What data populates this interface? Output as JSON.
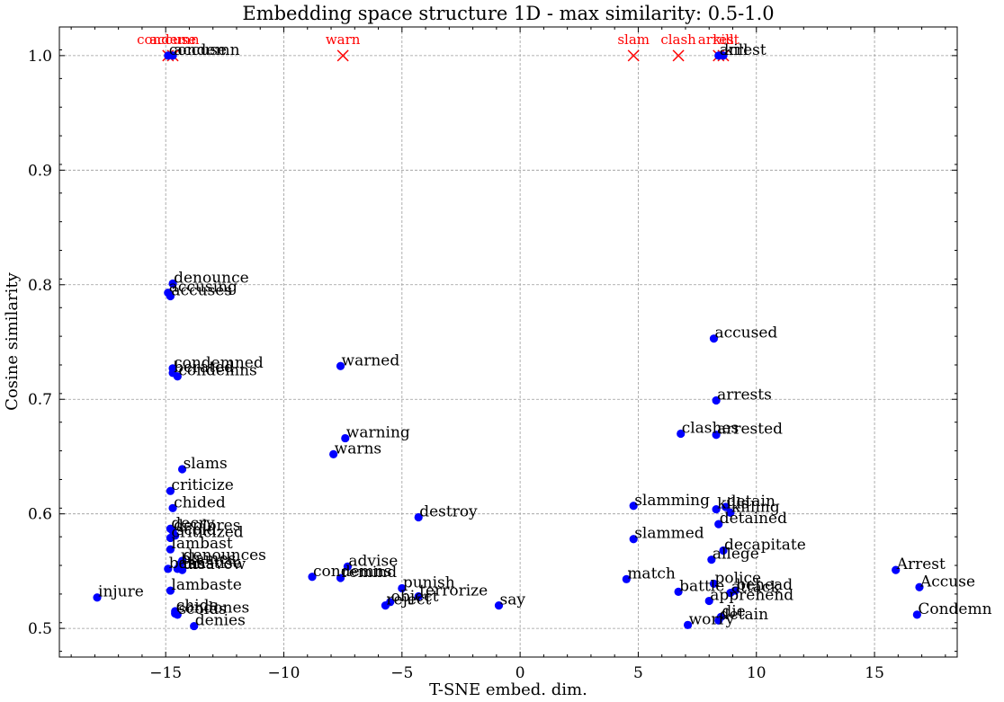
{
  "chart_data": {
    "type": "scatter",
    "title": "Embedding space structure 1D - max similarity: 0.5-1.0",
    "xlabel": "T-SNE embed. dim.",
    "ylabel": "Cosine similarity",
    "xlim": [
      -19.5,
      18.5
    ],
    "ylim": [
      0.475,
      1.025
    ],
    "xticks": [
      -15,
      -10,
      -5,
      0,
      5,
      10,
      15
    ],
    "xtick_labels": [
      "−15",
      "−10",
      "−5",
      "0",
      "5",
      "10",
      "15"
    ],
    "yticks": [
      0.5,
      0.6,
      0.7,
      0.8,
      0.9,
      1.0
    ],
    "ytick_labels": [
      "0.5",
      "0.6",
      "0.7",
      "0.8",
      "0.9",
      "1.0"
    ],
    "grid": true,
    "colors": {
      "points": "#0000ff",
      "reference": "#ff0000"
    },
    "reference_words": [
      {
        "label": "condemn",
        "x": -14.9,
        "y": 1.0
      },
      {
        "label": "accuse",
        "x": -14.7,
        "y": 1.0
      },
      {
        "label": "warn",
        "x": -7.5,
        "y": 1.0
      },
      {
        "label": "slam",
        "x": 4.8,
        "y": 1.0
      },
      {
        "label": "clash",
        "x": 6.7,
        "y": 1.0
      },
      {
        "label": "arrest",
        "x": 8.4,
        "y": 1.0
      },
      {
        "label": "kill",
        "x": 8.6,
        "y": 1.0
      }
    ],
    "points": [
      {
        "label": "accuse",
        "x": -14.7,
        "y": 1.0
      },
      {
        "label": "condemn",
        "x": -14.9,
        "y": 1.0
      },
      {
        "label": "arrest",
        "x": 8.4,
        "y": 1.0
      },
      {
        "label": "kill",
        "x": 8.6,
        "y": 1.0
      },
      {
        "label": "denounce",
        "x": -14.7,
        "y": 0.801
      },
      {
        "label": "accusing",
        "x": -14.9,
        "y": 0.793
      },
      {
        "label": "accuses",
        "x": -14.8,
        "y": 0.79
      },
      {
        "label": "accused",
        "x": 8.2,
        "y": 0.753
      },
      {
        "label": "condemned",
        "x": -14.7,
        "y": 0.727
      },
      {
        "label": "warned",
        "x": -7.6,
        "y": 0.729
      },
      {
        "label": "berated",
        "x": -14.7,
        "y": 0.723
      },
      {
        "label": "condemns",
        "x": -14.5,
        "y": 0.72
      },
      {
        "label": "arrests",
        "x": 8.3,
        "y": 0.699
      },
      {
        "label": "clashes",
        "x": 6.8,
        "y": 0.67
      },
      {
        "label": "arrested",
        "x": 8.3,
        "y": 0.669
      },
      {
        "label": "warning",
        "x": -7.4,
        "y": 0.666
      },
      {
        "label": "warns",
        "x": -7.9,
        "y": 0.652
      },
      {
        "label": "slams",
        "x": -14.3,
        "y": 0.639
      },
      {
        "label": "criticize",
        "x": -14.8,
        "y": 0.62
      },
      {
        "label": "chided",
        "x": -14.7,
        "y": 0.605
      },
      {
        "label": "slamming",
        "x": 4.8,
        "y": 0.607
      },
      {
        "label": "kills",
        "x": 8.3,
        "y": 0.604
      },
      {
        "label": "killing",
        "x": 8.9,
        "y": 0.601
      },
      {
        "label": "detain",
        "x": 8.7,
        "y": 0.606
      },
      {
        "label": "destroy",
        "x": -4.3,
        "y": 0.597
      },
      {
        "label": "detained",
        "x": 8.4,
        "y": 0.591
      },
      {
        "label": "decry",
        "x": -14.8,
        "y": 0.587
      },
      {
        "label": "deplores",
        "x": -14.7,
        "y": 0.585
      },
      {
        "label": "scold",
        "x": -14.6,
        "y": 0.581
      },
      {
        "label": "criticized",
        "x": -14.8,
        "y": 0.579
      },
      {
        "label": "slammed",
        "x": 4.8,
        "y": 0.578
      },
      {
        "label": "lambast",
        "x": -14.8,
        "y": 0.569
      },
      {
        "label": "decapitate",
        "x": 8.6,
        "y": 0.568
      },
      {
        "label": "allege",
        "x": 8.1,
        "y": 0.56
      },
      {
        "label": "denounces",
        "x": -14.3,
        "y": 0.559
      },
      {
        "label": "blames",
        "x": -14.4,
        "y": 0.556
      },
      {
        "label": "advise",
        "x": -7.3,
        "y": 0.554
      },
      {
        "label": "chastise",
        "x": -14.5,
        "y": 0.552
      },
      {
        "label": "bash",
        "x": -14.9,
        "y": 0.552
      },
      {
        "label": "disavow",
        "x": -14.3,
        "y": 0.551
      },
      {
        "label": "Arrest",
        "x": 15.9,
        "y": 0.551
      },
      {
        "label": "condemns",
        "x": -8.8,
        "y": 0.545
      },
      {
        "label": "remind",
        "x": -7.6,
        "y": 0.544
      },
      {
        "label": "match",
        "x": 4.5,
        "y": 0.543
      },
      {
        "label": "police",
        "x": 8.2,
        "y": 0.539
      },
      {
        "label": "Accuse",
        "x": 16.9,
        "y": 0.536
      },
      {
        "label": "punish",
        "x": -5.0,
        "y": 0.535
      },
      {
        "label": "lambaste",
        "x": -14.8,
        "y": 0.533
      },
      {
        "label": "battle",
        "x": 6.7,
        "y": 0.532
      },
      {
        "label": "behead",
        "x": 9.1,
        "y": 0.533
      },
      {
        "label": "attack",
        "x": 8.9,
        "y": 0.531
      },
      {
        "label": "terrorize",
        "x": -4.3,
        "y": 0.528
      },
      {
        "label": "injure",
        "x": -17.9,
        "y": 0.527
      },
      {
        "label": "apprehend",
        "x": 8.0,
        "y": 0.524
      },
      {
        "label": "object",
        "x": -5.5,
        "y": 0.523
      },
      {
        "label": "reject",
        "x": -5.7,
        "y": 0.52
      },
      {
        "label": "say",
        "x": -0.9,
        "y": 0.52
      },
      {
        "label": "chide",
        "x": -14.6,
        "y": 0.515
      },
      {
        "label": "scolds",
        "x": -14.5,
        "y": 0.512
      },
      {
        "label": "condones",
        "x": -14.6,
        "y": 0.513
      },
      {
        "label": "Condemn",
        "x": 16.8,
        "y": 0.512
      },
      {
        "label": "die",
        "x": 8.5,
        "y": 0.51
      },
      {
        "label": "detain",
        "x": 8.4,
        "y": 0.507
      },
      {
        "label": "worry",
        "x": 7.1,
        "y": 0.503
      },
      {
        "label": "denies",
        "x": -13.8,
        "y": 0.502
      }
    ]
  }
}
